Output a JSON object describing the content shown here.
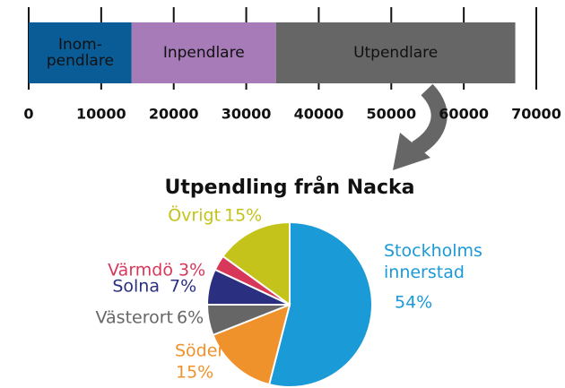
{
  "chart_data": [
    {
      "type": "bar",
      "orientation": "horizontal",
      "stacked": true,
      "series": [
        {
          "name": "Inom-\npendlare",
          "color": "#0a5c96",
          "values": [
            14200
          ]
        },
        {
          "name": "Inpendlare",
          "color": "#a77ab8",
          "values": [
            19900
          ]
        },
        {
          "name": "Utpendlare",
          "color": "#666666",
          "values": [
            33000
          ]
        }
      ],
      "xlim": [
        0,
        70000
      ],
      "xticks": [
        0,
        10000,
        20000,
        30000,
        40000,
        50000,
        60000,
        70000
      ],
      "grid": true
    },
    {
      "type": "pie",
      "title": "Utpendling från Nacka",
      "categories": [
        "Stockholms\ninnerstad",
        "Söderort",
        "Västerort",
        "Solna",
        "Värmdö",
        "Övrigt"
      ],
      "values": [
        54,
        15,
        6,
        7,
        3,
        15
      ],
      "value_labels": [
        "54%",
        "15%",
        "6%",
        "7%",
        "3%",
        "15%"
      ],
      "colors": [
        "#1a9ad6",
        "#f0922b",
        "#666666",
        "#2a2f7f",
        "#d7385a",
        "#c3c31b"
      ]
    }
  ]
}
